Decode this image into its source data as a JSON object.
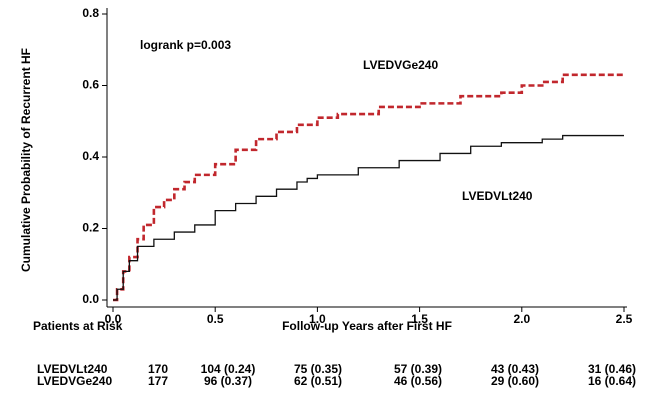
{
  "chart_data": {
    "type": "step",
    "y_label": "Cumulative Probability of Recurrent HF",
    "x_label": "Follow-up Years after First HF",
    "annotation": "logrank p=0.003",
    "xlim": [
      0,
      2.5
    ],
    "ylim": [
      0,
      0.8
    ],
    "xticks": [
      {
        "value": 0,
        "label": "0.0"
      },
      0.5,
      {
        "value": 1,
        "label": "1.0"
      },
      1.5,
      {
        "value": 2,
        "label": "2.0"
      },
      2.5
    ],
    "yticks": [
      {
        "value": 0,
        "label": "0.0"
      },
      0.2,
      0.4,
      0.6,
      0.8
    ],
    "series": [
      {
        "name": "LVEDVGe240",
        "color": "#c1272d",
        "dashed": true,
        "x": [
          0,
          0.02,
          0.05,
          0.08,
          0.12,
          0.15,
          0.2,
          0.25,
          0.3,
          0.35,
          0.4,
          0.5,
          0.6,
          0.7,
          0.8,
          0.9,
          1.0,
          1.1,
          1.3,
          1.5,
          1.7,
          1.9,
          2.0,
          2.1,
          2.2,
          2.5
        ],
        "values": [
          0,
          0.03,
          0.08,
          0.12,
          0.17,
          0.21,
          0.26,
          0.28,
          0.31,
          0.33,
          0.35,
          0.38,
          0.42,
          0.45,
          0.47,
          0.49,
          0.51,
          0.52,
          0.54,
          0.55,
          0.57,
          0.58,
          0.6,
          0.61,
          0.63,
          0.63
        ]
      },
      {
        "name": "LVEDVLt240",
        "color": "#111111",
        "dashed": false,
        "x": [
          0,
          0.02,
          0.05,
          0.08,
          0.12,
          0.2,
          0.3,
          0.4,
          0.5,
          0.6,
          0.7,
          0.8,
          0.9,
          0.95,
          1.0,
          1.2,
          1.4,
          1.6,
          1.75,
          1.9,
          2.1,
          2.2,
          2.5
        ],
        "values": [
          0,
          0.03,
          0.08,
          0.11,
          0.15,
          0.17,
          0.19,
          0.21,
          0.25,
          0.27,
          0.29,
          0.31,
          0.33,
          0.34,
          0.35,
          0.37,
          0.39,
          0.41,
          0.43,
          0.44,
          0.45,
          0.46,
          0.46
        ]
      }
    ],
    "risk_table": {
      "title": "Patients at Risk",
      "rows": [
        {
          "name": "LVEDVLt240",
          "cells": [
            "170",
            "104 (0.24)",
            "75 (0.35)",
            "57 (0.39)",
            "43 (0.43)",
            "31 (0.46)"
          ]
        },
        {
          "name": "LVEDVGe240",
          "cells": [
            "177",
            "96 (0.37)",
            "62 (0.51)",
            "46 (0.56)",
            "29 (0.60)",
            "16 (0.64)"
          ]
        }
      ]
    }
  }
}
